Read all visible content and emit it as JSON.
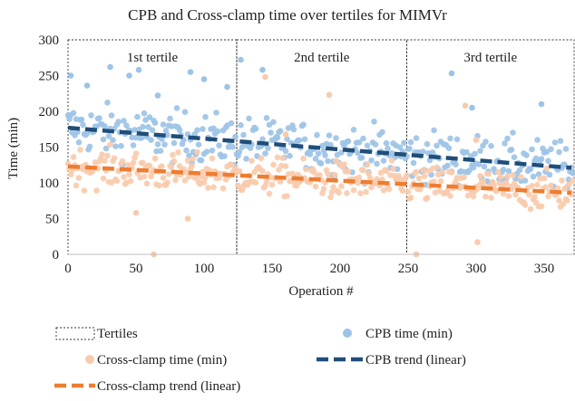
{
  "chart_data": {
    "type": "scatter",
    "title": "CPB and Cross-clamp time over tertiles for MIMVr",
    "xlabel": "Operation #",
    "ylabel": "Time (min)",
    "xlim": [
      0,
      370
    ],
    "ylim": [
      0,
      300
    ],
    "x_ticks": [
      "0",
      "50",
      "100",
      "150",
      "200",
      "250",
      "300",
      "350"
    ],
    "y_ticks": [
      "0",
      "50",
      "100",
      "150",
      "200",
      "250",
      "300"
    ],
    "grid": false,
    "tertiles": [
      {
        "label": "1st tertile",
        "x_range": [
          0,
          124
        ]
      },
      {
        "label": "2nd tertile",
        "x_range": [
          124,
          249
        ]
      },
      {
        "label": "3rd tertile",
        "x_range": [
          249,
          372
        ]
      }
    ],
    "series": [
      {
        "name": "CPB time (min)",
        "kind": "points",
        "color": "#9dc3e6",
        "n": 372,
        "trend_start": 177,
        "trend_end": 121,
        "spread": 32,
        "outliers": [
          [
            2,
            250
          ],
          [
            14,
            236
          ],
          [
            31,
            262
          ],
          [
            45,
            250
          ],
          [
            52,
            258
          ],
          [
            66,
            222
          ],
          [
            90,
            255
          ],
          [
            100,
            245
          ],
          [
            117,
            234
          ],
          [
            127,
            272
          ],
          [
            143,
            258
          ],
          [
            282,
            253
          ],
          [
            297,
            205
          ],
          [
            348,
            210
          ]
        ]
      },
      {
        "name": "Cross-clamp time (min)",
        "kind": "points",
        "color": "#f8cbad",
        "n": 372,
        "trend_start": 123,
        "trend_end": 86,
        "spread": 24,
        "outliers": [
          [
            63,
            0
          ],
          [
            256,
            0
          ],
          [
            301,
            17
          ],
          [
            88,
            50
          ],
          [
            50,
            58
          ],
          [
            145,
            248
          ],
          [
            192,
            223
          ],
          [
            292,
            208
          ],
          [
            160,
            168
          ],
          [
            300,
            160
          ]
        ]
      },
      {
        "name": "CPB trend (linear)",
        "kind": "trend",
        "color": "#1f4e79",
        "start": [
          0,
          177
        ],
        "end": [
          370,
          121
        ]
      },
      {
        "name": "Cross-clamp trend (linear)",
        "kind": "trend",
        "color": "#ed7d31",
        "start": [
          0,
          123
        ],
        "end": [
          370,
          86
        ]
      }
    ],
    "legend": {
      "placement": "bottom",
      "items": [
        {
          "label": "Tertiles",
          "symbol": "dashed-box"
        },
        {
          "label": "CPB time (min)",
          "symbol": "dot",
          "color": "#9dc3e6"
        },
        {
          "label": "Cross-clamp time (min)",
          "symbol": "dot",
          "color": "#f8cbad"
        },
        {
          "label": "CPB trend (linear)",
          "symbol": "dash",
          "color": "#1f4e79"
        },
        {
          "label": "Cross-clamp trend (linear)",
          "symbol": "dash",
          "color": "#ed7d31"
        }
      ]
    }
  }
}
